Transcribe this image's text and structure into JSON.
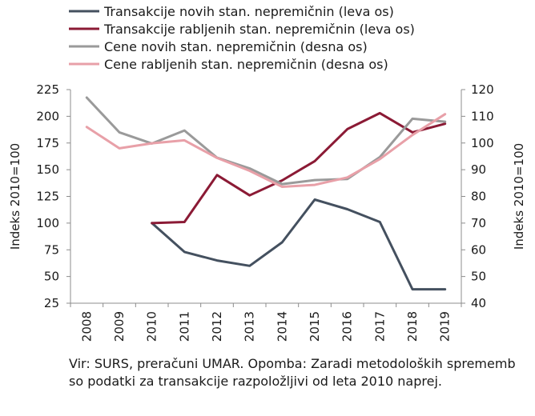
{
  "chart_data": {
    "type": "line",
    "categories": [
      "2008",
      "2009",
      "2010",
      "2011",
      "2012",
      "2013",
      "2014",
      "2015",
      "2016",
      "2017",
      "2018",
      "2019"
    ],
    "left_axis": {
      "label": "Indeks 2010=100",
      "min": 25,
      "max": 225,
      "ticks": [
        25,
        50,
        75,
        100,
        125,
        150,
        175,
        200,
        225
      ]
    },
    "right_axis": {
      "label": "Indeks 2010=100",
      "min": 40,
      "max": 120,
      "ticks": [
        40,
        50,
        60,
        70,
        80,
        90,
        100,
        110,
        120
      ]
    },
    "grid": false,
    "legend_position": "top",
    "series": [
      {
        "name": "Transakcije novih stan. nepremičnin (leva os)",
        "axis": "left",
        "color": "#44505f",
        "values": [
          null,
          null,
          100,
          73,
          65,
          60,
          82,
          122,
          113,
          101,
          38,
          38
        ]
      },
      {
        "name": "Transakcije rabljenih stan. nepremičnin (leva os)",
        "axis": "left",
        "color": "#8b1a35",
        "values": [
          null,
          null,
          100,
          101,
          145,
          126,
          140,
          158,
          188,
          203,
          185,
          193
        ]
      },
      {
        "name": "Cene novih stan. nepremičnin (desna os)",
        "axis": "right",
        "color": "#9a9a9a",
        "values": [
          117,
          104,
          99.8,
          104.7,
          94.5,
          90.5,
          84.6,
          86.1,
          86.5,
          94.7,
          109.1,
          108
        ]
      },
      {
        "name": "Cene rabljenih stan. nepremičnin (desna os)",
        "axis": "right",
        "color": "#e8a0a8",
        "values": [
          106,
          98,
          99.9,
          101,
          94.4,
          89.6,
          83.6,
          84.3,
          87.1,
          94,
          103,
          110.8
        ]
      }
    ]
  },
  "note": "Vir: SURS, preračuni UMAR. Opomba: Zaradi metodoloških sprememb so podatki za transakcije razpoložljivi od leta 2010 naprej."
}
